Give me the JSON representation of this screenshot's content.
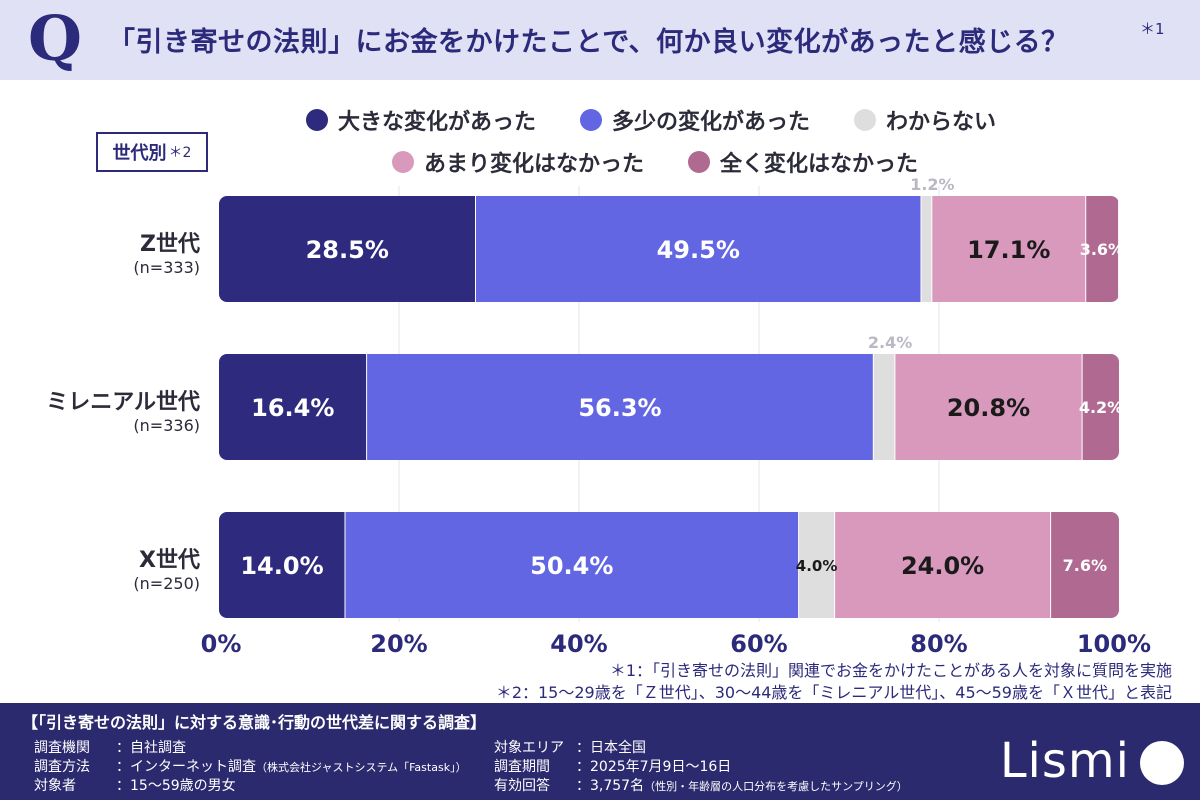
{
  "header": {
    "q_letter": "Q",
    "question": "「引き寄せの法則」にお金をかけたことで、何か良い変化があったと感じる？",
    "note_mark": "＊1"
  },
  "legend": [
    {
      "label": "大きな変化があった",
      "color": "#2e2a7e"
    },
    {
      "label": "多少の変化があった",
      "color": "#6266e2"
    },
    {
      "label": "わからない",
      "color": "#dedede"
    },
    {
      "label": "あまり変化はなかった",
      "color": "#d999bd"
    },
    {
      "label": "全く変化はなかった",
      "color": "#b06a92"
    }
  ],
  "group_tag": {
    "label": "世代別",
    "note": "＊2"
  },
  "chart_data": {
    "type": "bar",
    "orientation": "horizontal",
    "stacked": true,
    "xlim": [
      0,
      100
    ],
    "xticks": [
      "0%",
      "20%",
      "40%",
      "60%",
      "80%",
      "100%"
    ],
    "categories": [
      {
        "name": "Z世代",
        "n": "(n=333)"
      },
      {
        "name": "ミレニアル世代",
        "n": "(n=336)"
      },
      {
        "name": "X世代",
        "n": "(n=250)"
      }
    ],
    "series": [
      {
        "name": "大きな変化があった",
        "color": "#2e2a7e",
        "values": [
          28.5,
          16.4,
          14.0
        ],
        "labels": [
          "28.5%",
          "16.4%",
          "14.0%"
        ]
      },
      {
        "name": "多少の変化があった",
        "color": "#6266e2",
        "values": [
          49.5,
          56.3,
          50.4
        ],
        "labels": [
          "49.5%",
          "56.3%",
          "50.4%"
        ]
      },
      {
        "name": "わからない",
        "color": "#dedede",
        "values": [
          1.2,
          2.4,
          4.0
        ],
        "labels": [
          "1.2%",
          "2.4%",
          "4.0%"
        ]
      },
      {
        "name": "あまり変化はなかった",
        "color": "#d999bd",
        "values": [
          17.1,
          20.8,
          24.0
        ],
        "labels": [
          "17.1%",
          "20.8%",
          "24.0%"
        ]
      },
      {
        "name": "全く変化はなかった",
        "color": "#b06a92",
        "values": [
          3.6,
          4.2,
          7.6
        ],
        "labels": [
          "3.6%",
          "4.2%",
          "7.6%"
        ]
      }
    ]
  },
  "notes": {
    "note1": "＊1：「引き寄せの法則」関連でお金をかけたことがある人を対象に質問を実施",
    "note2": "＊2：15〜29歳を「Ｚ世代」、30〜44歳を「ミレニアル世代」、45〜59歳を「Ｘ世代」と表記"
  },
  "footer": {
    "title": "【「引き寄せの法則」に対する意識･行動の世代差に関する調査】",
    "left": [
      {
        "key": "調査機関",
        "value": "：自社調査",
        "small": ""
      },
      {
        "key": "調査方法",
        "value": "：インターネット調査",
        "small": "（株式会社ジャストシステム「Fastask」）"
      },
      {
        "key": "対象者",
        "value": "：15〜59歳の男女",
        "small": ""
      }
    ],
    "right": [
      {
        "key": "対象エリア",
        "value": "：日本全国",
        "small": ""
      },
      {
        "key": "調査期間",
        "value": "：2025年7月9日〜16日",
        "small": ""
      },
      {
        "key": "有効回答",
        "value": "：3,757名",
        "small": "（性別・年齢層の人口分布を考慮したサンプリング）"
      }
    ],
    "logo": "Lismi"
  }
}
